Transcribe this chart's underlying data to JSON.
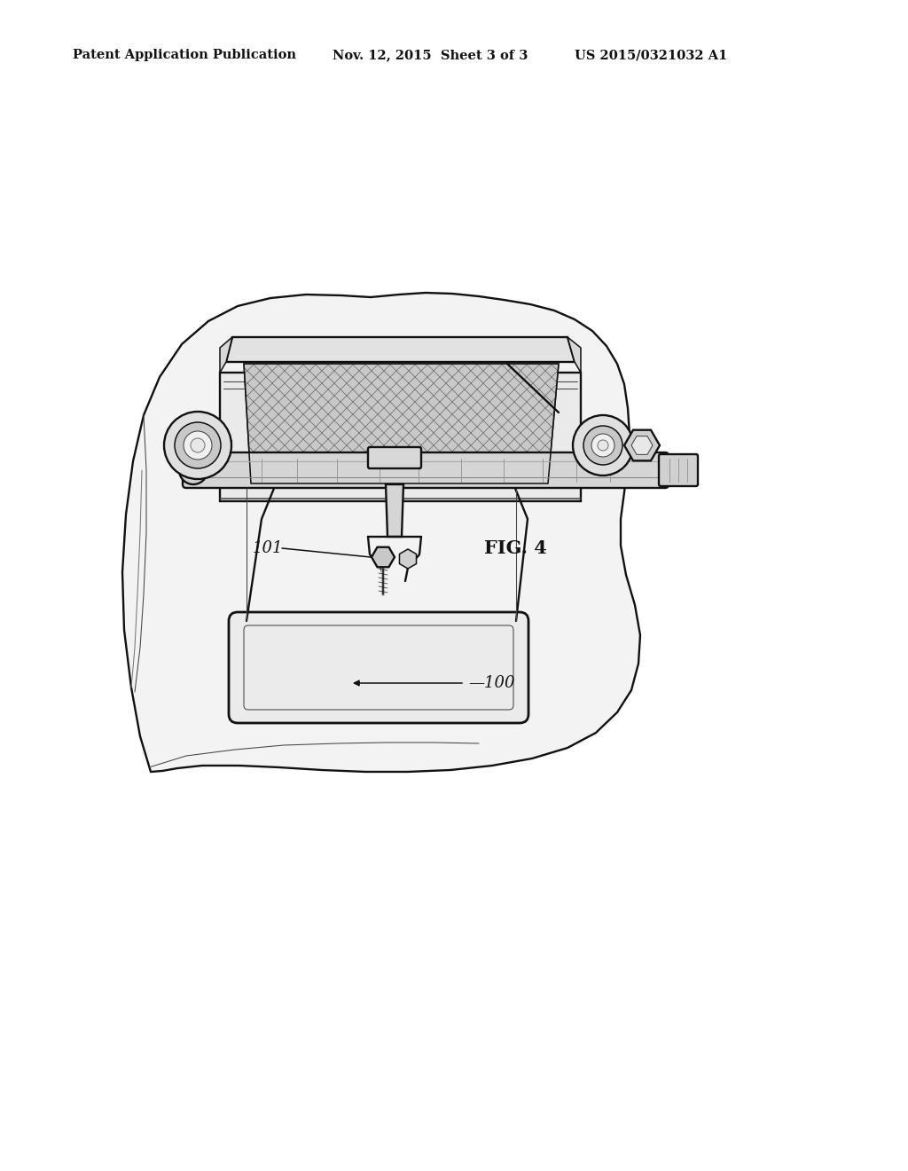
{
  "bg_color": "#ffffff",
  "header_left": "Patent Application Publication",
  "header_mid": "Nov. 12, 2015  Sheet 3 of 3",
  "header_right": "US 2015/0321032 A1",
  "fig_label": "FIG. 4",
  "label_101": "101",
  "label_100": "100",
  "lc": "#111111",
  "lc2": "#444444",
  "lc3": "#777777",
  "fill_white": "#ffffff",
  "fill_light": "#f0f0f0",
  "fill_mid": "#d8d8d8",
  "fill_dark": "#b0b0b0",
  "fill_mesh": "#c0c0c0"
}
